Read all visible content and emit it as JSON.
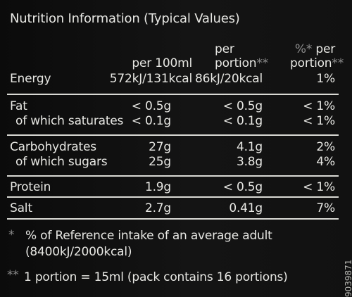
{
  "title": "Nutrition Information (Typical Values)",
  "headers": {
    "col1": "per 100ml",
    "col2_line1": "per",
    "col2_line2": "portion",
    "col2_marker": "**",
    "col3_marker": "%*",
    "col3_line1_suffix": " per",
    "col3_line2": "portion",
    "col3_line2_marker": "**"
  },
  "rows": [
    {
      "label": "Energy",
      "per100": "572kJ/131kcal",
      "portion": "86kJ/20kcal",
      "pct": "1%"
    },
    {
      "label": "Fat",
      "per100": "< 0.5g",
      "portion": "< 0.5g",
      "pct": "< 1%"
    },
    {
      "label": "of which saturates",
      "per100": "< 0.1g",
      "portion": "< 0.1g",
      "pct": "< 1%"
    },
    {
      "label": "Carbohydrates",
      "per100": "27g",
      "portion": "4.1g",
      "pct": "2%"
    },
    {
      "label": "of which sugars",
      "per100": "25g",
      "portion": "3.8g",
      "pct": "4%"
    },
    {
      "label": "Protein",
      "per100": "1.9g",
      "portion": "< 0.5g",
      "pct": "< 1%"
    },
    {
      "label": "Salt",
      "per100": "2.7g",
      "portion": "0.41g",
      "pct": "7%"
    }
  ],
  "footnotes": {
    "note1_marker": "*",
    "note1_line1": "% of Reference intake of an average adult",
    "note1_line2": "(8400kJ/2000kcal)",
    "note2_marker": "**",
    "note2_text": "1 portion = 15ml (pack contains 16 portions)"
  },
  "code": "9039871",
  "colors": {
    "background": "#101010",
    "text": "#e7e7e3",
    "rule": "#d9d9d4",
    "marker": "#8d8d8d"
  }
}
